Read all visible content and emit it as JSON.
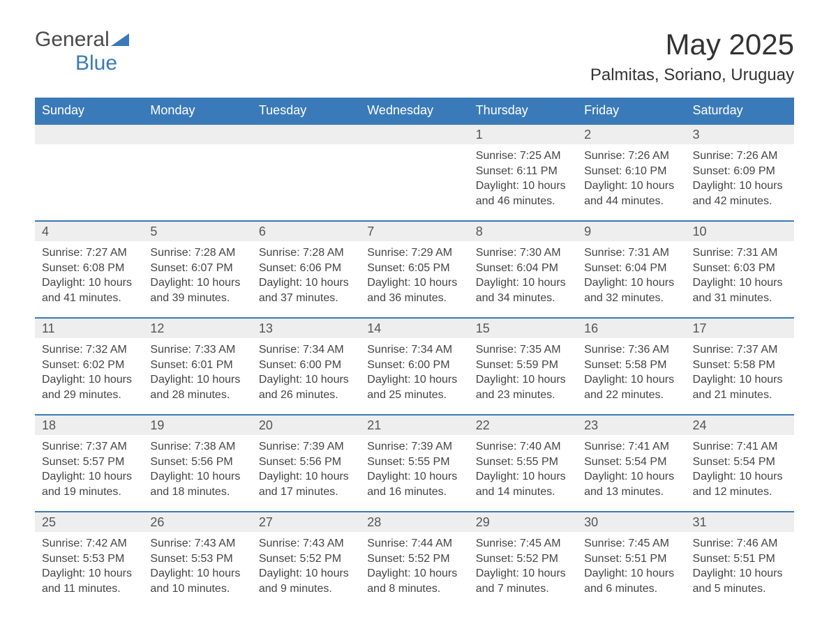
{
  "brand": {
    "part1": "General",
    "part2": "Blue"
  },
  "title": "May 2025",
  "location": "Palmitas, Soriano, Uruguay",
  "colors": {
    "header_bg": "#3b7ab8",
    "header_text": "#ffffff",
    "daynum_bg": "#eeeeee",
    "daynum_border": "#3b7ab8",
    "body_text": "#444444",
    "page_bg": "#ffffff"
  },
  "typography": {
    "title_fontsize": 42,
    "location_fontsize": 24,
    "header_fontsize": 18,
    "daynum_fontsize": 18,
    "cell_fontsize": 16
  },
  "columns": [
    "Sunday",
    "Monday",
    "Tuesday",
    "Wednesday",
    "Thursday",
    "Friday",
    "Saturday"
  ],
  "weeks": [
    [
      null,
      null,
      null,
      null,
      {
        "n": "1",
        "sr": "Sunrise: 7:25 AM",
        "ss": "Sunset: 6:11 PM",
        "dl": "Daylight: 10 hours and 46 minutes."
      },
      {
        "n": "2",
        "sr": "Sunrise: 7:26 AM",
        "ss": "Sunset: 6:10 PM",
        "dl": "Daylight: 10 hours and 44 minutes."
      },
      {
        "n": "3",
        "sr": "Sunrise: 7:26 AM",
        "ss": "Sunset: 6:09 PM",
        "dl": "Daylight: 10 hours and 42 minutes."
      }
    ],
    [
      {
        "n": "4",
        "sr": "Sunrise: 7:27 AM",
        "ss": "Sunset: 6:08 PM",
        "dl": "Daylight: 10 hours and 41 minutes."
      },
      {
        "n": "5",
        "sr": "Sunrise: 7:28 AM",
        "ss": "Sunset: 6:07 PM",
        "dl": "Daylight: 10 hours and 39 minutes."
      },
      {
        "n": "6",
        "sr": "Sunrise: 7:28 AM",
        "ss": "Sunset: 6:06 PM",
        "dl": "Daylight: 10 hours and 37 minutes."
      },
      {
        "n": "7",
        "sr": "Sunrise: 7:29 AM",
        "ss": "Sunset: 6:05 PM",
        "dl": "Daylight: 10 hours and 36 minutes."
      },
      {
        "n": "8",
        "sr": "Sunrise: 7:30 AM",
        "ss": "Sunset: 6:04 PM",
        "dl": "Daylight: 10 hours and 34 minutes."
      },
      {
        "n": "9",
        "sr": "Sunrise: 7:31 AM",
        "ss": "Sunset: 6:04 PM",
        "dl": "Daylight: 10 hours and 32 minutes."
      },
      {
        "n": "10",
        "sr": "Sunrise: 7:31 AM",
        "ss": "Sunset: 6:03 PM",
        "dl": "Daylight: 10 hours and 31 minutes."
      }
    ],
    [
      {
        "n": "11",
        "sr": "Sunrise: 7:32 AM",
        "ss": "Sunset: 6:02 PM",
        "dl": "Daylight: 10 hours and 29 minutes."
      },
      {
        "n": "12",
        "sr": "Sunrise: 7:33 AM",
        "ss": "Sunset: 6:01 PM",
        "dl": "Daylight: 10 hours and 28 minutes."
      },
      {
        "n": "13",
        "sr": "Sunrise: 7:34 AM",
        "ss": "Sunset: 6:00 PM",
        "dl": "Daylight: 10 hours and 26 minutes."
      },
      {
        "n": "14",
        "sr": "Sunrise: 7:34 AM",
        "ss": "Sunset: 6:00 PM",
        "dl": "Daylight: 10 hours and 25 minutes."
      },
      {
        "n": "15",
        "sr": "Sunrise: 7:35 AM",
        "ss": "Sunset: 5:59 PM",
        "dl": "Daylight: 10 hours and 23 minutes."
      },
      {
        "n": "16",
        "sr": "Sunrise: 7:36 AM",
        "ss": "Sunset: 5:58 PM",
        "dl": "Daylight: 10 hours and 22 minutes."
      },
      {
        "n": "17",
        "sr": "Sunrise: 7:37 AM",
        "ss": "Sunset: 5:58 PM",
        "dl": "Daylight: 10 hours and 21 minutes."
      }
    ],
    [
      {
        "n": "18",
        "sr": "Sunrise: 7:37 AM",
        "ss": "Sunset: 5:57 PM",
        "dl": "Daylight: 10 hours and 19 minutes."
      },
      {
        "n": "19",
        "sr": "Sunrise: 7:38 AM",
        "ss": "Sunset: 5:56 PM",
        "dl": "Daylight: 10 hours and 18 minutes."
      },
      {
        "n": "20",
        "sr": "Sunrise: 7:39 AM",
        "ss": "Sunset: 5:56 PM",
        "dl": "Daylight: 10 hours and 17 minutes."
      },
      {
        "n": "21",
        "sr": "Sunrise: 7:39 AM",
        "ss": "Sunset: 5:55 PM",
        "dl": "Daylight: 10 hours and 16 minutes."
      },
      {
        "n": "22",
        "sr": "Sunrise: 7:40 AM",
        "ss": "Sunset: 5:55 PM",
        "dl": "Daylight: 10 hours and 14 minutes."
      },
      {
        "n": "23",
        "sr": "Sunrise: 7:41 AM",
        "ss": "Sunset: 5:54 PM",
        "dl": "Daylight: 10 hours and 13 minutes."
      },
      {
        "n": "24",
        "sr": "Sunrise: 7:41 AM",
        "ss": "Sunset: 5:54 PM",
        "dl": "Daylight: 10 hours and 12 minutes."
      }
    ],
    [
      {
        "n": "25",
        "sr": "Sunrise: 7:42 AM",
        "ss": "Sunset: 5:53 PM",
        "dl": "Daylight: 10 hours and 11 minutes."
      },
      {
        "n": "26",
        "sr": "Sunrise: 7:43 AM",
        "ss": "Sunset: 5:53 PM",
        "dl": "Daylight: 10 hours and 10 minutes."
      },
      {
        "n": "27",
        "sr": "Sunrise: 7:43 AM",
        "ss": "Sunset: 5:52 PM",
        "dl": "Daylight: 10 hours and 9 minutes."
      },
      {
        "n": "28",
        "sr": "Sunrise: 7:44 AM",
        "ss": "Sunset: 5:52 PM",
        "dl": "Daylight: 10 hours and 8 minutes."
      },
      {
        "n": "29",
        "sr": "Sunrise: 7:45 AM",
        "ss": "Sunset: 5:52 PM",
        "dl": "Daylight: 10 hours and 7 minutes."
      },
      {
        "n": "30",
        "sr": "Sunrise: 7:45 AM",
        "ss": "Sunset: 5:51 PM",
        "dl": "Daylight: 10 hours and 6 minutes."
      },
      {
        "n": "31",
        "sr": "Sunrise: 7:46 AM",
        "ss": "Sunset: 5:51 PM",
        "dl": "Daylight: 10 hours and 5 minutes."
      }
    ]
  ]
}
